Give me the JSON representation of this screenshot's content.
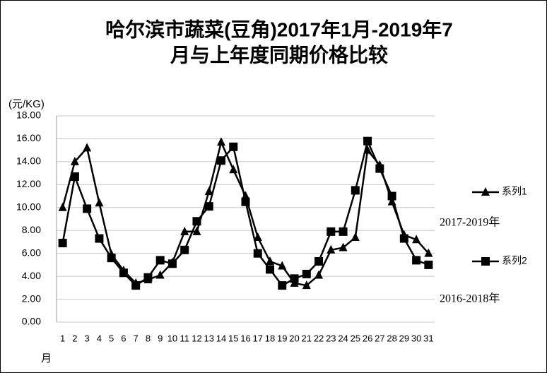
{
  "chart_data": {
    "type": "line",
    "title_lines": [
      "哈尔滨市蔬菜(豆角)2017年1月-2019年7",
      "月与上年度同期价格比较"
    ],
    "y_label": "(元/KG)",
    "x_label": "月",
    "categories": [
      "1",
      "2",
      "3",
      "4",
      "5",
      "6",
      "7",
      "8",
      "9",
      "10",
      "11",
      "12",
      "13",
      "14",
      "15",
      "16",
      "17",
      "18",
      "19",
      "20",
      "21",
      "22",
      "23",
      "24",
      "25",
      "26",
      "27",
      "28",
      "29",
      "30",
      "31"
    ],
    "series": [
      {
        "name": "系列1",
        "marker": "triangle",
        "color": "#000000",
        "values": [
          10.0,
          14.0,
          15.2,
          10.4,
          5.9,
          4.5,
          3.4,
          3.7,
          4.1,
          5.2,
          7.9,
          7.9,
          11.4,
          15.7,
          13.3,
          11.0,
          7.4,
          5.3,
          4.9,
          3.4,
          3.2,
          4.1,
          6.3,
          6.5,
          7.4,
          15.0,
          13.7,
          10.5,
          7.6,
          7.2,
          6.0
        ]
      },
      {
        "name": "系列2",
        "marker": "square",
        "color": "#000000",
        "values": [
          6.9,
          12.7,
          9.9,
          7.3,
          5.6,
          4.3,
          3.2,
          3.9,
          5.4,
          5.1,
          6.3,
          8.8,
          10.1,
          14.1,
          15.3,
          10.5,
          6.0,
          4.6,
          3.2,
          3.8,
          4.2,
          5.3,
          7.9,
          7.9,
          11.5,
          15.8,
          13.4,
          11.0,
          7.3,
          5.4,
          5.0
        ]
      }
    ],
    "annotations": [
      "2017-2019年",
      "2016-2018年"
    ],
    "ylim": [
      0,
      18
    ],
    "yticks": [
      {
        "value": 0,
        "label": "0.00"
      },
      {
        "value": 2,
        "label": "2.00"
      },
      {
        "value": 4,
        "label": "4.00"
      },
      {
        "value": 6,
        "label": "6.00"
      },
      {
        "value": 8,
        "label": "8.00"
      },
      {
        "value": 10,
        "label": "10.00"
      },
      {
        "value": 12,
        "label": "12.00"
      },
      {
        "value": 14,
        "label": "14.00"
      },
      {
        "value": 16,
        "label": "16.00"
      },
      {
        "value": 18,
        "label": "18.00"
      }
    ],
    "grid": true
  }
}
